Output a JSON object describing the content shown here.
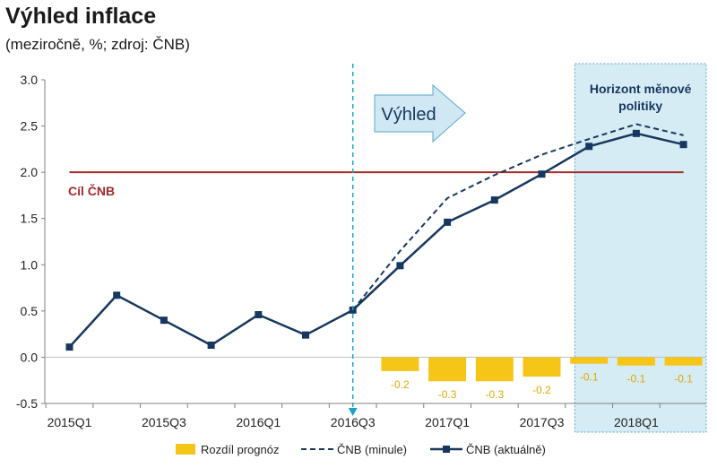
{
  "title": "Výhled inflace",
  "subtitle": "(meziročně, %; zdroj: ČNB)",
  "chart_data": {
    "type": "line",
    "categories": [
      "2015Q1",
      "2015Q2",
      "2015Q3",
      "2015Q4",
      "2016Q1",
      "2016Q2",
      "2016Q3",
      "2016Q4",
      "2017Q1",
      "2017Q2",
      "2017Q3",
      "2017Q4",
      "2018Q1",
      "2018Q2",
      "2018Q3"
    ],
    "x_tick_labels": [
      "2015Q1",
      "2015Q3",
      "2016Q1",
      "2016Q3",
      "2017Q1",
      "2017Q3",
      "2018Q1"
    ],
    "y_ticks": [
      "3.0",
      "2.5",
      "2.0",
      "1.5",
      "1.0",
      "0.5",
      "0.0",
      "-0.5"
    ],
    "ylim": [
      -0.5,
      3.0
    ],
    "target": {
      "value": 2.0,
      "label": "Cíl ČNB",
      "color": "#a52a2a"
    },
    "outlook_label": "Výhled",
    "policy_horizon_label": [
      "Horizont  měnové",
      "politiky"
    ],
    "series": [
      {
        "name": "ČNB (aktuálně)",
        "color": "#17375e",
        "values": [
          0.11,
          0.67,
          0.4,
          0.13,
          0.46,
          0.24,
          0.51,
          0.99,
          1.46,
          1.7,
          1.98,
          2.28,
          2.42,
          2.3,
          null
        ]
      },
      {
        "name": "ČNB (minule)",
        "color": "#17375e",
        "values": [
          null,
          null,
          null,
          null,
          null,
          null,
          0.51,
          1.15,
          1.72,
          1.97,
          2.19,
          2.36,
          2.52,
          2.4,
          null
        ]
      },
      {
        "name": "Rozdíl prognóz",
        "color": "#f5c518",
        "values": [
          null,
          null,
          null,
          null,
          null,
          null,
          null,
          -0.15,
          -0.26,
          -0.26,
          -0.21,
          -0.07,
          -0.09,
          -0.09,
          null
        ],
        "labels": [
          null,
          null,
          null,
          null,
          null,
          null,
          null,
          "-0.2",
          "-0.3",
          "-0.3",
          "-0.2",
          "-0.1",
          "-0.1",
          "-0.1",
          null
        ]
      }
    ],
    "legend": [
      "Rozdíl prognóz",
      "ČNB (minule)",
      "ČNB (aktuálně)"
    ]
  }
}
